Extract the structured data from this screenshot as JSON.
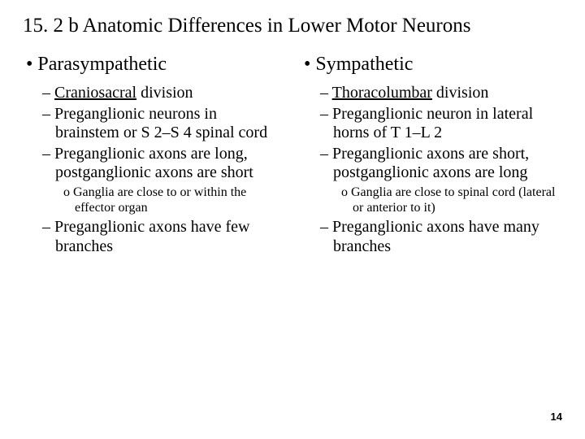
{
  "title": "15. 2 b Anatomic Differences in Lower Motor Neurons",
  "left": {
    "heading": "Parasympathetic",
    "items": [
      {
        "html": "<span class='underline'>Craniosacral</span> division"
      },
      {
        "html": "Preganglionic neurons in brainstem or S 2–S 4 spinal cord"
      },
      {
        "html": "Preganglionic axons are long, postganglionic axons are short",
        "sub": [
          {
            "html": "Ganglia are close to or within the effector organ"
          }
        ]
      },
      {
        "html": "Preganglionic axons have few branches"
      }
    ]
  },
  "right": {
    "heading": "Sympathetic",
    "items": [
      {
        "html": "<span class='underline'>Thoracolumbar</span> division"
      },
      {
        "html": "Preganglionic neuron in lateral horns of T 1–L 2"
      },
      {
        "html": "Preganglionic axons are short, postganglionic axons are long",
        "sub": [
          {
            "html": "Ganglia are close to spinal cord (lateral or anterior to it)"
          }
        ]
      },
      {
        "html": "Preganglionic axons have many branches"
      }
    ]
  },
  "pageNumber": "14",
  "styling": {
    "background_color": "#ffffff",
    "text_color": "#000000",
    "title_fontsize": 25,
    "main_item_fontsize": 24,
    "sub_item_fontsize": 20,
    "sub_sub_item_fontsize": 16,
    "page_num_fontsize": 13,
    "font_family": "Times New Roman"
  }
}
